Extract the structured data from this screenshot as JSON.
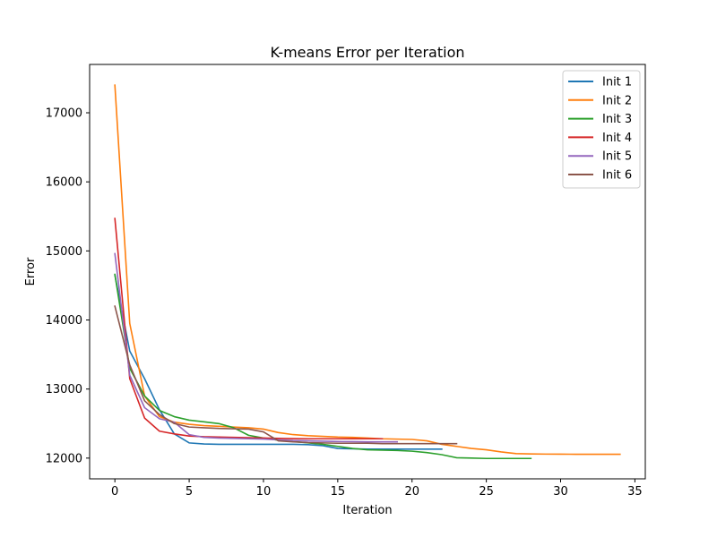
{
  "chart_data": {
    "type": "line",
    "title": "K-means Error per Iteration",
    "xlabel": "Iteration",
    "ylabel": "Error",
    "xlim": [
      -1.7,
      35.7
    ],
    "ylim": [
      11700,
      17700
    ],
    "xticks": [
      0,
      5,
      10,
      15,
      20,
      25,
      30,
      35
    ],
    "yticks": [
      12000,
      13000,
      14000,
      15000,
      16000,
      17000
    ],
    "grid": false,
    "legend_position": "top-right",
    "series": [
      {
        "name": "Init 1",
        "color": "#1f77b4",
        "x": [
          0,
          1,
          2,
          3,
          4,
          5,
          6,
          7,
          8,
          9,
          10,
          11,
          12,
          13,
          14,
          15,
          16,
          17,
          18,
          19,
          20,
          21,
          22
        ],
        "y": [
          14650,
          13550,
          13150,
          12700,
          12350,
          12220,
          12205,
          12200,
          12200,
          12200,
          12200,
          12200,
          12200,
          12195,
          12180,
          12140,
          12135,
          12130,
          12130,
          12130,
          12130,
          12130,
          12130
        ]
      },
      {
        "name": "Init 2",
        "color": "#ff7f0e",
        "x": [
          0,
          1,
          2,
          3,
          4,
          5,
          6,
          7,
          8,
          9,
          10,
          11,
          12,
          13,
          14,
          15,
          16,
          17,
          18,
          19,
          20,
          21,
          22,
          23,
          24,
          25,
          26,
          27,
          28,
          29,
          30,
          31,
          32,
          33,
          34
        ],
        "y": [
          17400,
          13950,
          12900,
          12600,
          12520,
          12490,
          12470,
          12460,
          12450,
          12440,
          12420,
          12370,
          12340,
          12325,
          12315,
          12305,
          12300,
          12290,
          12280,
          12275,
          12270,
          12250,
          12200,
          12170,
          12140,
          12120,
          12090,
          12065,
          12060,
          12058,
          12057,
          12056,
          12055,
          12055,
          12055
        ]
      },
      {
        "name": "Init 3",
        "color": "#2ca02c",
        "x": [
          0,
          1,
          2,
          3,
          4,
          5,
          6,
          7,
          8,
          9,
          10,
          11,
          12,
          13,
          14,
          15,
          16,
          17,
          18,
          19,
          20,
          21,
          22,
          23,
          24,
          25,
          26,
          27,
          28
        ],
        "y": [
          14660,
          13300,
          12900,
          12690,
          12600,
          12550,
          12525,
          12500,
          12440,
          12330,
          12290,
          12260,
          12240,
          12220,
          12200,
          12170,
          12140,
          12120,
          12115,
          12110,
          12100,
          12080,
          12050,
          12005,
          12000,
          11995,
          11995,
          11995,
          11995
        ]
      },
      {
        "name": "Init 4",
        "color": "#d62728",
        "x": [
          0,
          1,
          2,
          3,
          4,
          5,
          6,
          7,
          8,
          9,
          10,
          11,
          12,
          13,
          14,
          15,
          16,
          17,
          18
        ],
        "y": [
          15470,
          13150,
          12580,
          12390,
          12350,
          12320,
          12310,
          12305,
          12300,
          12295,
          12290,
          12285,
          12282,
          12280,
          12280,
          12280,
          12280,
          12280,
          12280
        ]
      },
      {
        "name": "Init 5",
        "color": "#9467bd",
        "x": [
          0,
          1,
          2,
          3,
          4,
          5,
          6,
          7,
          8,
          9,
          10,
          11,
          12,
          13,
          14,
          15,
          16,
          17,
          18,
          19
        ],
        "y": [
          14960,
          13200,
          12730,
          12570,
          12520,
          12340,
          12300,
          12290,
          12285,
          12280,
          12275,
          12265,
          12255,
          12250,
          12245,
          12240,
          12238,
          12236,
          12235,
          12235
        ]
      },
      {
        "name": "Init 6",
        "color": "#8c564b",
        "x": [
          0,
          1,
          2,
          3,
          4,
          5,
          6,
          7,
          8,
          9,
          10,
          11,
          12,
          13,
          14,
          15,
          16,
          17,
          18,
          19,
          20,
          21,
          22,
          23
        ],
        "y": [
          14200,
          13350,
          12830,
          12630,
          12500,
          12450,
          12440,
          12430,
          12425,
          12420,
          12380,
          12250,
          12235,
          12225,
          12220,
          12215,
          12215,
          12215,
          12210,
          12210,
          12210,
          12210,
          12210,
          12210
        ]
      }
    ]
  }
}
